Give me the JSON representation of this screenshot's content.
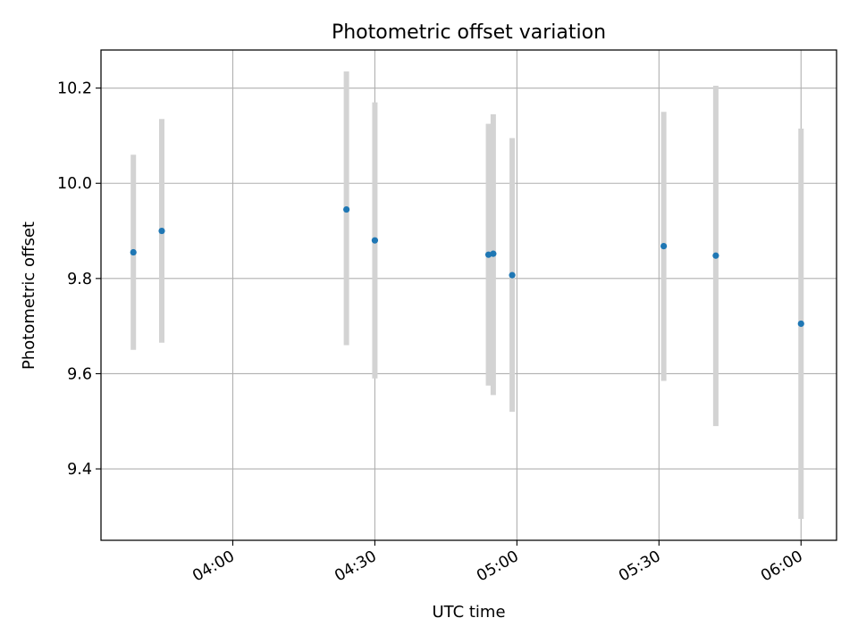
{
  "chart_data": {
    "type": "scatter",
    "title": "Photometric offset variation",
    "xlabel": "UTC time",
    "ylabel": "Photometric offset",
    "xlim": [
      "03:32:10",
      "06:07:30"
    ],
    "ylim": [
      9.25,
      10.28
    ],
    "x_ticks": [
      "04:00",
      "04:30",
      "05:00",
      "05:30",
      "06:00"
    ],
    "y_ticks": [
      "9.4",
      "9.6",
      "9.8",
      "10.0",
      "10.2"
    ],
    "grid": true,
    "marker_color": "#1f77b4",
    "errorbar_color": "#d3d3d3",
    "points": [
      {
        "x": "03:39",
        "y": 9.855,
        "ylow": 9.65,
        "yhigh": 10.06
      },
      {
        "x": "03:45",
        "y": 9.9,
        "ylow": 9.665,
        "yhigh": 10.135
      },
      {
        "x": "04:24",
        "y": 9.945,
        "ylow": 9.66,
        "yhigh": 10.235
      },
      {
        "x": "04:30",
        "y": 9.88,
        "ylow": 9.59,
        "yhigh": 10.17
      },
      {
        "x": "04:54",
        "y": 9.85,
        "ylow": 9.575,
        "yhigh": 10.125
      },
      {
        "x": "04:55",
        "y": 9.852,
        "ylow": 9.555,
        "yhigh": 10.145
      },
      {
        "x": "04:59",
        "y": 9.807,
        "ylow": 9.52,
        "yhigh": 10.095
      },
      {
        "x": "05:31",
        "y": 9.868,
        "ylow": 9.585,
        "yhigh": 10.15
      },
      {
        "x": "05:42",
        "y": 9.848,
        "ylow": 9.49,
        "yhigh": 10.205
      },
      {
        "x": "06:00",
        "y": 9.705,
        "ylow": 9.295,
        "yhigh": 10.115
      }
    ]
  }
}
